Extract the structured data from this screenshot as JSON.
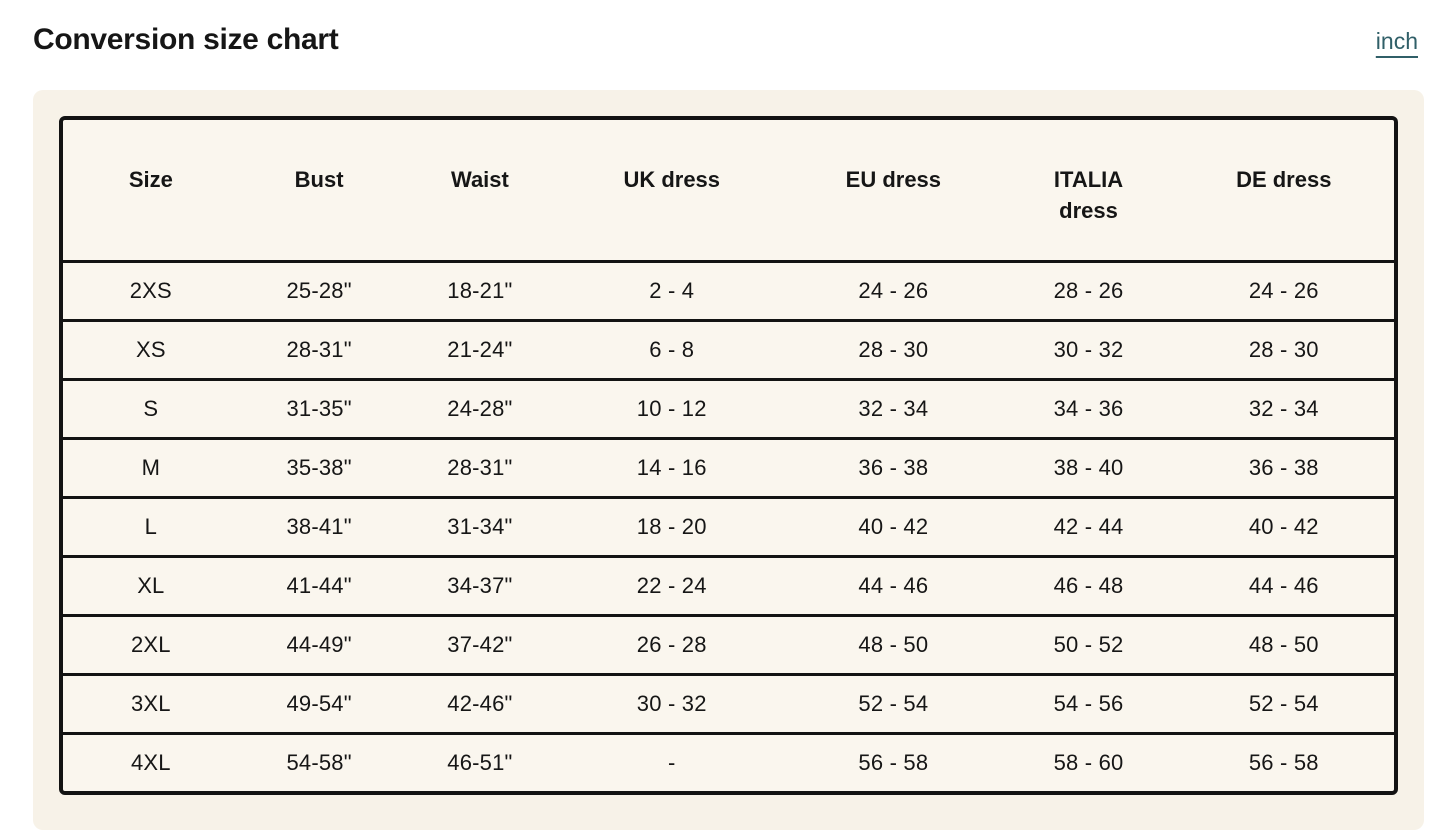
{
  "page": {
    "title": "Conversion size chart",
    "unit_link_label": "inch"
  },
  "colors": {
    "page_background": "#ffffff",
    "panel_background": "#f7f2e8",
    "table_background": "#faf6ee",
    "border_black": "#131313",
    "text": "#161616",
    "link_teal": "#305f68"
  },
  "table": {
    "headers": [
      "Size",
      "Bust",
      "Waist",
      "UK dress",
      "EU dress",
      "ITALIA\ndress",
      "DE dress"
    ],
    "rows": [
      [
        "2XS",
        "25-28\"",
        "18-21\"",
        "2 - 4",
        "24 - 26",
        "28 - 26",
        "24 - 26"
      ],
      [
        "XS",
        "28-31\"",
        "21-24\"",
        "6 - 8",
        "28 - 30",
        "30 - 32",
        "28 - 30"
      ],
      [
        "S",
        "31-35\"",
        "24-28\"",
        "10 - 12",
        "32 - 34",
        "34 - 36",
        "32 - 34"
      ],
      [
        "M",
        "35-38\"",
        "28-31\"",
        "14 - 16",
        "36 - 38",
        "38 - 40",
        "36 - 38"
      ],
      [
        "L",
        "38-41\"",
        "31-34\"",
        "18 - 20",
        "40 - 42",
        "42 - 44",
        "40 - 42"
      ],
      [
        "XL",
        "41-44\"",
        "34-37\"",
        "22 - 24",
        "44 - 46",
        "46 - 48",
        "44 - 46"
      ],
      [
        "2XL",
        "44-49\"",
        "37-42\"",
        "26 - 28",
        "48 - 50",
        "50 - 52",
        "48 - 50"
      ],
      [
        "3XL",
        "49-54\"",
        "42-46\"",
        "30 - 32",
        "52 - 54",
        "54 - 56",
        "52 - 54"
      ],
      [
        "4XL",
        "54-58\"",
        "46-51\"",
        "-",
        "56 - 58",
        "58 - 60",
        "56 - 58"
      ]
    ]
  }
}
